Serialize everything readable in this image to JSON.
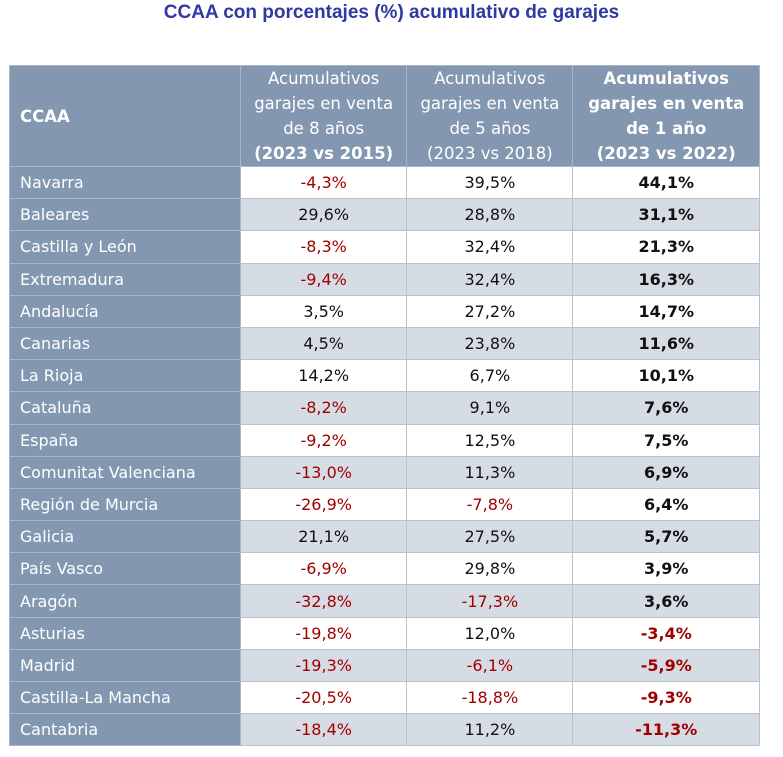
{
  "title": "CCAA con porcentajes (%) acumulativo de garajes",
  "headers": {
    "ccaa": "CCAA",
    "c1": [
      "Acumulativos",
      "garajes en venta",
      "de 8 años",
      "(2023 vs 2015)"
    ],
    "c2": [
      "Acumulativos",
      "garajes en venta",
      "de 5 años",
      "(2023 vs 2018)"
    ],
    "c3": [
      "Acumulativos",
      "garajes en venta",
      "de 1 año",
      "(2023 vs 2022)"
    ]
  },
  "rows": [
    [
      "Navarra",
      "-4,3%",
      "39,5%",
      "44,1%"
    ],
    [
      "Baleares",
      "29,6%",
      "28,8%",
      "31,1%"
    ],
    [
      "Castilla y León",
      "-8,3%",
      "32,4%",
      "21,3%"
    ],
    [
      "Extremadura",
      "-9,4%",
      "32,4%",
      "16,3%"
    ],
    [
      "Andalucía",
      "3,5%",
      "27,2%",
      "14,7%"
    ],
    [
      "Canarias",
      "4,5%",
      "23,8%",
      "11,6%"
    ],
    [
      "La Rioja",
      "14,2%",
      "6,7%",
      "10,1%"
    ],
    [
      "Cataluña",
      "-8,2%",
      "9,1%",
      "7,6%"
    ],
    [
      "España",
      "-9,2%",
      "12,5%",
      "7,5%"
    ],
    [
      "Comunitat Valenciana",
      "-13,0%",
      "11,3%",
      "6,9%"
    ],
    [
      "Región de Murcia",
      "-26,9%",
      "-7,8%",
      "6,4%"
    ],
    [
      "Galicia",
      "21,1%",
      "27,5%",
      "5,7%"
    ],
    [
      "País Vasco",
      "-6,9%",
      "29,8%",
      "3,9%"
    ],
    [
      "Aragón",
      "-32,8%",
      "-17,3%",
      "3,6%"
    ],
    [
      "Asturias",
      "-19,8%",
      "12,0%",
      "-3,4%"
    ],
    [
      "Madrid",
      "-19,3%",
      "-6,1%",
      "-5,9%"
    ],
    [
      "Castilla-La Mancha",
      "-20,5%",
      "-18,8%",
      "-9,3%"
    ],
    [
      "Cantabria",
      "-18,4%",
      "11,2%",
      "-11,3%"
    ]
  ],
  "colors": {
    "header": "#8497b0",
    "alt_row": "#d6dce4",
    "negative": "#a00000",
    "title": "#2e3aa0"
  }
}
